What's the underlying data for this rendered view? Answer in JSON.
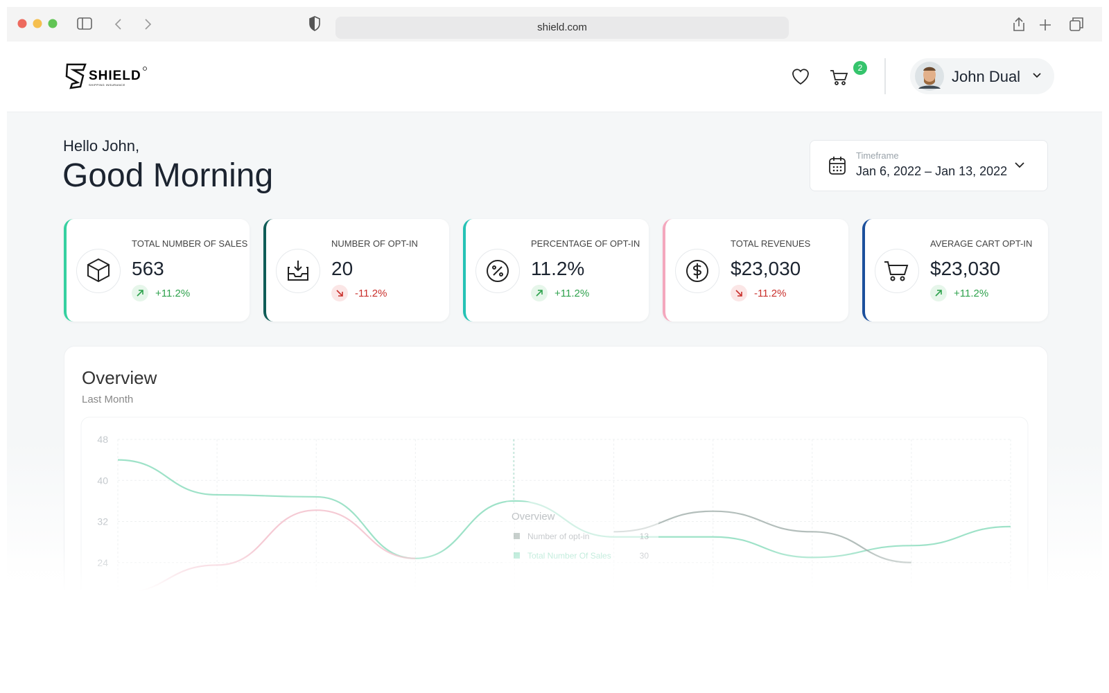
{
  "browser": {
    "url": "shield.com"
  },
  "header": {
    "brand": "SHIELD",
    "brand_tagline": "SHIPPING INSURANCE",
    "cart_count": 2,
    "user_name": "John Dual"
  },
  "greeting": {
    "hello": "Hello John,",
    "message": "Good Morning"
  },
  "timeframe": {
    "label": "Timeframe",
    "value": "Jan 6, 2022 – Jan 13, 2022"
  },
  "cards": [
    {
      "title": "TOTAL NUMBER OF SALES",
      "value": "563",
      "change": "+11.2%",
      "accent": "#35d0a0"
    },
    {
      "title": "NUMBER OF OPT-IN",
      "value": "20",
      "change": "-11.2%",
      "accent": "#0f5c57"
    },
    {
      "title": "PERCENTAGE OF OPT-IN",
      "value": "11.2%",
      "change": "+11.2%",
      "accent": "#25c2b5"
    },
    {
      "title": "TOTAL REVENUES",
      "value": "$23,030",
      "change": "-11.2%",
      "accent": "#f4a7bd"
    },
    {
      "title": "AVERAGE CART OPT-IN",
      "value": "$23,030",
      "change": "+11.2%",
      "accent": "#1b4f9c"
    }
  ],
  "overview": {
    "title": "Overview",
    "subtitle": "Last Month",
    "chart": {
      "type": "line",
      "ylim": [
        16,
        48
      ],
      "yticks": [
        24,
        32,
        40,
        48
      ],
      "series": [
        {
          "color": "#7dd8b5",
          "values": [
            44,
            37.2,
            36.8,
            24.8,
            36,
            29,
            29,
            25,
            27.3,
            31
          ]
        },
        {
          "color": "#f2b8c6",
          "values": [
            18,
            23.5,
            34.2,
            24.8,
            null,
            null,
            null,
            null,
            null,
            null
          ]
        },
        {
          "color": "#9aa8a4",
          "values": [
            null,
            null,
            null,
            null,
            null,
            30,
            34,
            30,
            24,
            null
          ]
        }
      ]
    },
    "tooltip": {
      "title": "Overview",
      "items": [
        {
          "name": "Number of opt-in",
          "value": 13,
          "color": "#9aa8a4"
        },
        {
          "name": "Total Number Of Sales",
          "value": 30,
          "color": "#7dd8b5"
        }
      ]
    }
  }
}
